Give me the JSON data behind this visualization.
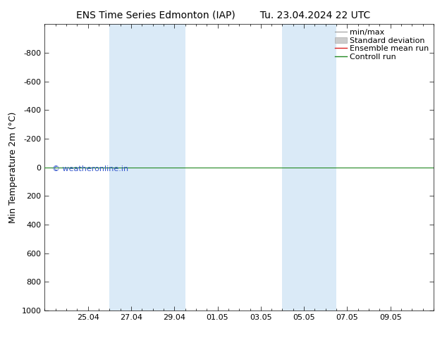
{
  "title_left": "ENS Time Series Edmonton (IAP)",
  "title_right": "Tu. 23.04.2024 22 UTC",
  "ylabel": "Min Temperature 2m (°C)",
  "ylim_top": -1000,
  "ylim_bottom": 1000,
  "yticks": [
    -800,
    -600,
    -400,
    -200,
    0,
    200,
    400,
    600,
    800,
    1000
  ],
  "xtick_labels": [
    "25.04",
    "27.04",
    "29.04",
    "01.05",
    "03.05",
    "05.05",
    "07.05",
    "09.05"
  ],
  "xtick_positions": [
    2,
    4,
    6,
    8,
    10,
    12,
    14,
    16
  ],
  "xlim": [
    0,
    18
  ],
  "shaded_bands": [
    {
      "x_start": 3.0,
      "x_end": 6.5
    },
    {
      "x_start": 11.0,
      "x_end": 13.5
    }
  ],
  "shade_color": "#daeaf7",
  "control_run_y": 0,
  "control_run_color": "#228822",
  "ensemble_mean_color": "#dd2222",
  "minmax_color": "#999999",
  "stddev_color": "#cccccc",
  "watermark_text": "© weatheronline.in",
  "watermark_color": "#3355cc",
  "bg_color": "#ffffff",
  "legend_items": [
    "min/max",
    "Standard deviation",
    "Ensemble mean run",
    "Controll run"
  ],
  "legend_line_colors": [
    "#999999",
    "#cccccc",
    "#dd2222",
    "#228822"
  ],
  "title_fontsize": 10,
  "ylabel_fontsize": 9,
  "tick_fontsize": 8,
  "legend_fontsize": 8,
  "watermark_fontsize": 8
}
